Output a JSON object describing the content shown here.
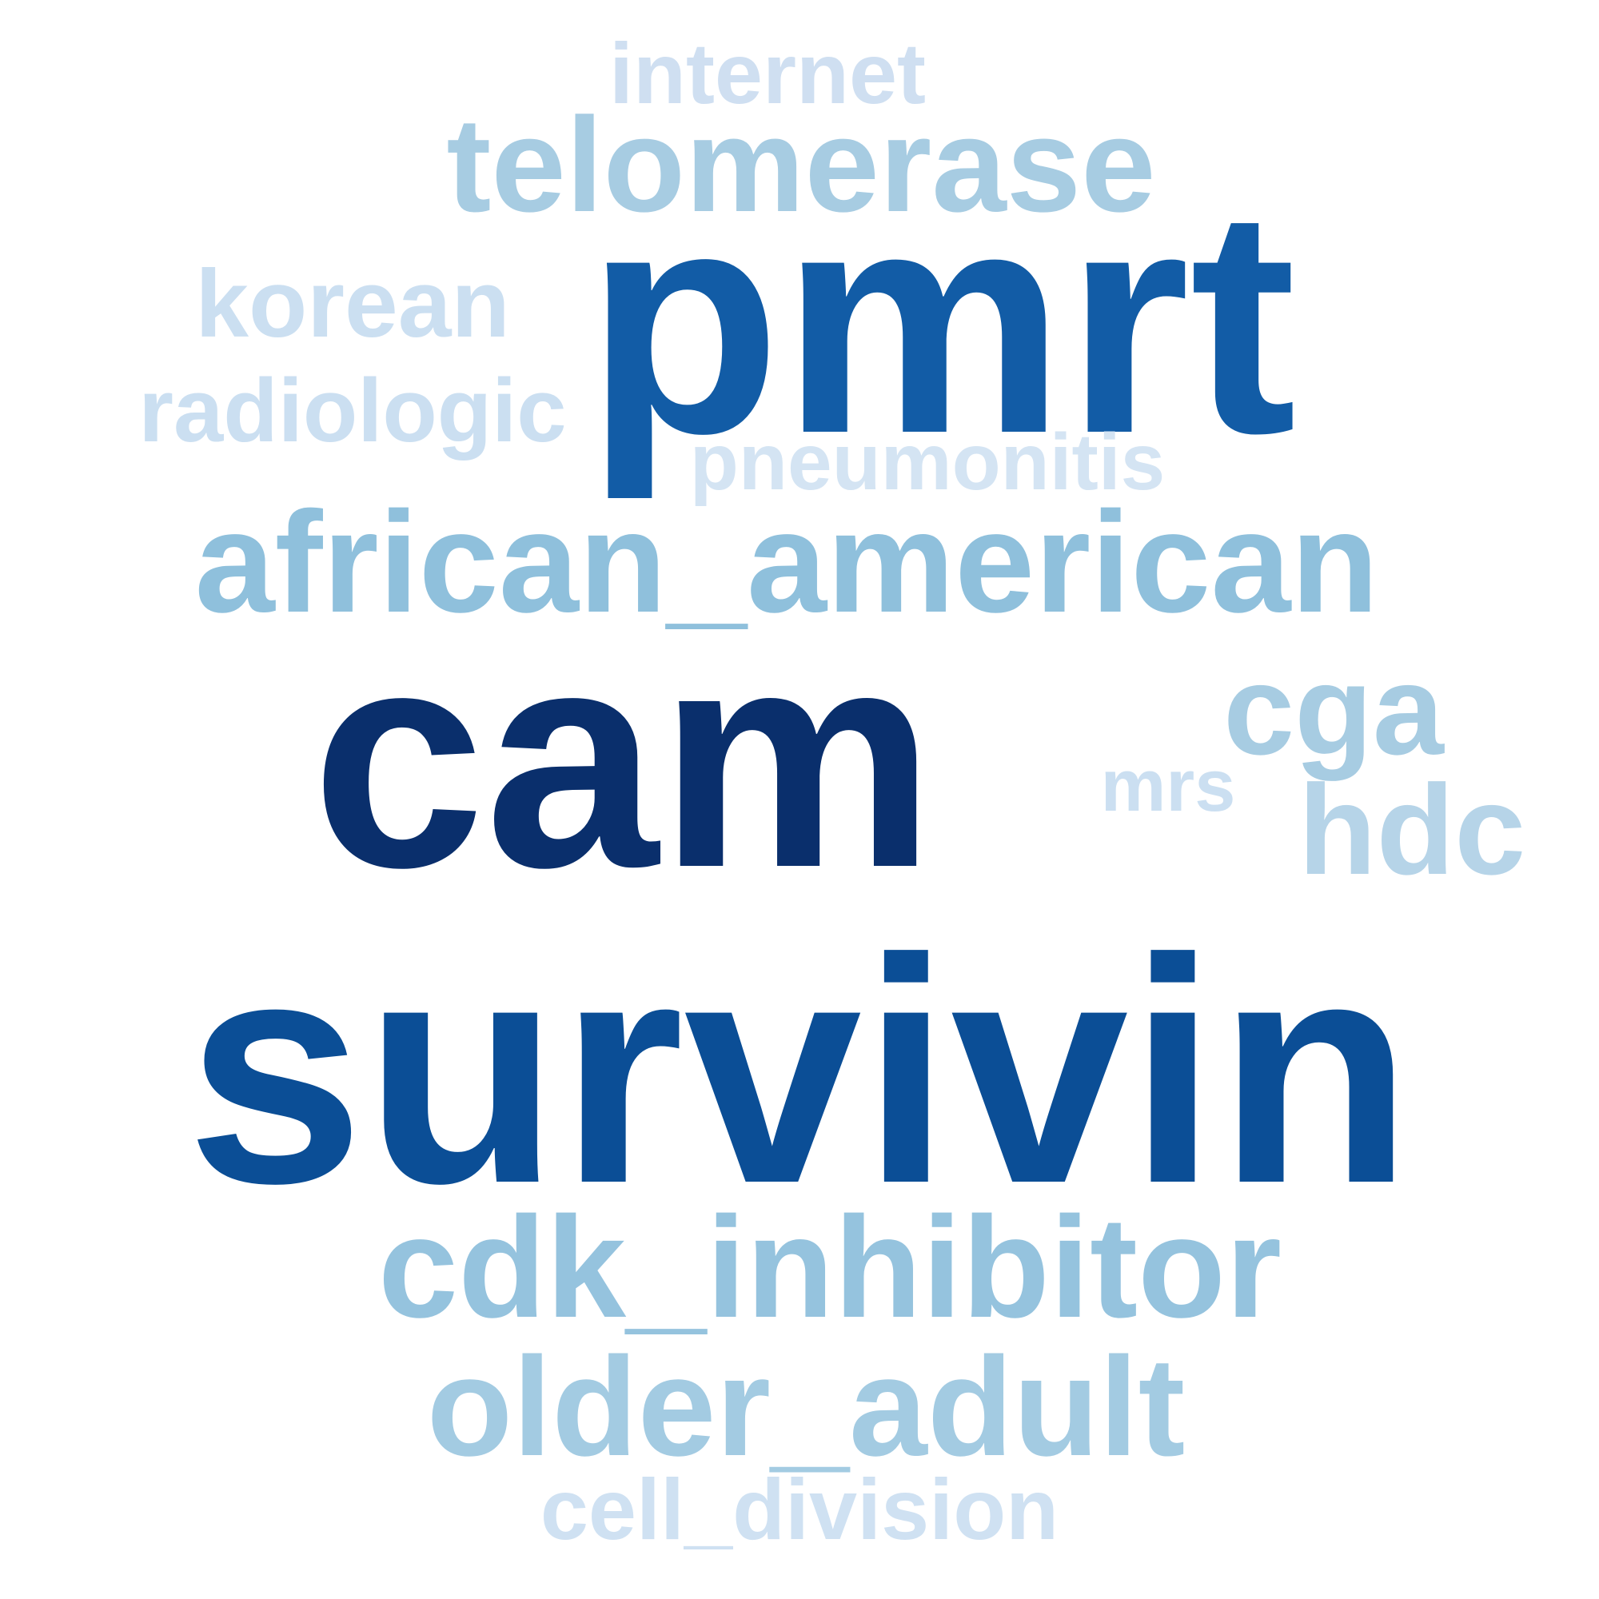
{
  "words": [
    {
      "key": "internet",
      "text": "internet",
      "color": "#cfdff1"
    },
    {
      "key": "telomerase",
      "text": "telomerase",
      "color": "#a7cce2"
    },
    {
      "key": "pmrt",
      "text": "pmrt",
      "color": "#125ca6"
    },
    {
      "key": "korean",
      "text": "korean",
      "color": "#cbdff1"
    },
    {
      "key": "radiologic",
      "text": "radiologic",
      "color": "#cbdff1"
    },
    {
      "key": "pneumonitis",
      "text": "pneumonitis",
      "color": "#d4e4f3"
    },
    {
      "key": "african_american",
      "text": "african_american",
      "color": "#8fc0dc"
    },
    {
      "key": "cam",
      "text": "cam",
      "color": "#0a2f6c"
    },
    {
      "key": "cga",
      "text": "cga",
      "color": "#a7cce2"
    },
    {
      "key": "mrs",
      "text": "mrs",
      "color": "#cbdff1"
    },
    {
      "key": "hdc",
      "text": "hdc",
      "color": "#b6d4e8"
    },
    {
      "key": "survivin",
      "text": "survivin",
      "color": "#0b4e96"
    },
    {
      "key": "cdk_inhibitor",
      "text": "cdk_inhibitor",
      "color": "#95c3de"
    },
    {
      "key": "older_adult",
      "text": "older_adult",
      "color": "#a3cbe2"
    },
    {
      "key": "cell_division",
      "text": "cell_division",
      "color": "#cfe1f2"
    }
  ]
}
